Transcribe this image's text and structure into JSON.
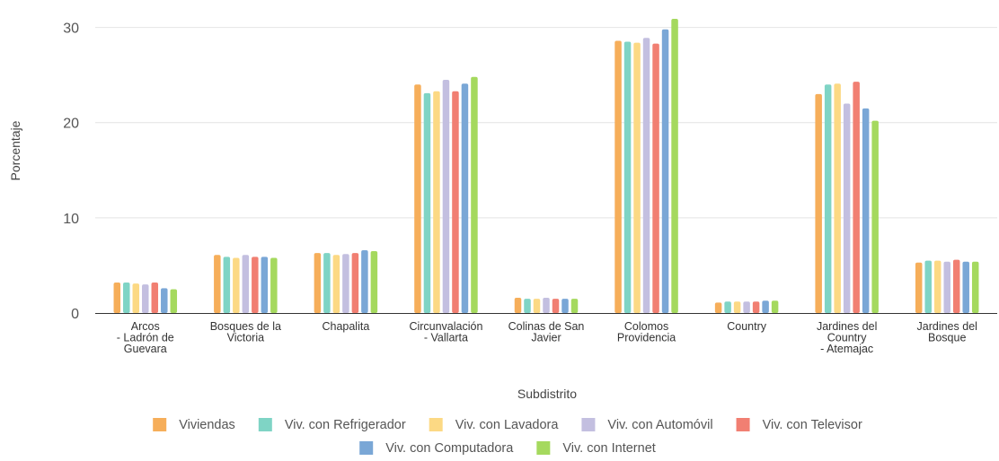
{
  "chart_data": {
    "type": "bar",
    "title": "",
    "xlabel": "Subdistrito",
    "ylabel": "Porcentaje",
    "ylim": [
      0,
      31
    ],
    "yticks": [
      0,
      10,
      20,
      30
    ],
    "grid": true,
    "legend_position": "bottom",
    "categories": [
      "Arcos - Ladrón de Guevara",
      "Bosques de la Victoria",
      "Chapalita",
      "Circunvalación - Vallarta",
      "Colinas de San Javier",
      "Colomos Providencia",
      "Country",
      "Jardines del Country - Atemajac",
      "Jardines del Bosque"
    ],
    "category_label_lines": [
      [
        "Arcos",
        "- Ladrón de",
        "Guevara"
      ],
      [
        "Bosques de la",
        "Victoria"
      ],
      [
        "Chapalita"
      ],
      [
        "Circunvalación",
        "- Vallarta"
      ],
      [
        "Colinas de San",
        "Javier"
      ],
      [
        "Colomos",
        "Providencia"
      ],
      [
        "Country"
      ],
      [
        "Jardines del",
        "Country",
        "- Atemajac"
      ],
      [
        "Jardines del",
        "Bosque"
      ]
    ],
    "series": [
      {
        "name": "Viviendas",
        "color": "#f6ae5a",
        "values": [
          3.2,
          6.1,
          6.3,
          24.0,
          1.6,
          28.6,
          1.1,
          23.0,
          5.3
        ]
      },
      {
        "name": "Viv. con Refrigerador",
        "color": "#7fd4c5",
        "values": [
          3.2,
          5.9,
          6.3,
          23.1,
          1.5,
          28.5,
          1.2,
          24.0,
          5.5
        ]
      },
      {
        "name": "Viv. con Lavadora",
        "color": "#fcd984",
        "values": [
          3.1,
          5.8,
          6.1,
          23.3,
          1.5,
          28.4,
          1.2,
          24.1,
          5.5
        ]
      },
      {
        "name": "Viv. con Automóvil",
        "color": "#c3bfe0",
        "values": [
          3.0,
          6.1,
          6.2,
          24.5,
          1.6,
          28.9,
          1.2,
          22.0,
          5.4
        ]
      },
      {
        "name": "Viv. con Televisor",
        "color": "#f17f72",
        "values": [
          3.2,
          5.9,
          6.3,
          23.3,
          1.5,
          28.3,
          1.2,
          24.3,
          5.6
        ]
      },
      {
        "name": "Viv. con Computadora",
        "color": "#7aa7d6",
        "values": [
          2.6,
          5.9,
          6.6,
          24.1,
          1.5,
          29.8,
          1.3,
          21.5,
          5.4
        ]
      },
      {
        "name": "Viv. con Internet",
        "color": "#a5d95e",
        "values": [
          2.5,
          5.8,
          6.5,
          24.8,
          1.5,
          30.9,
          1.3,
          20.2,
          5.4
        ]
      }
    ]
  }
}
